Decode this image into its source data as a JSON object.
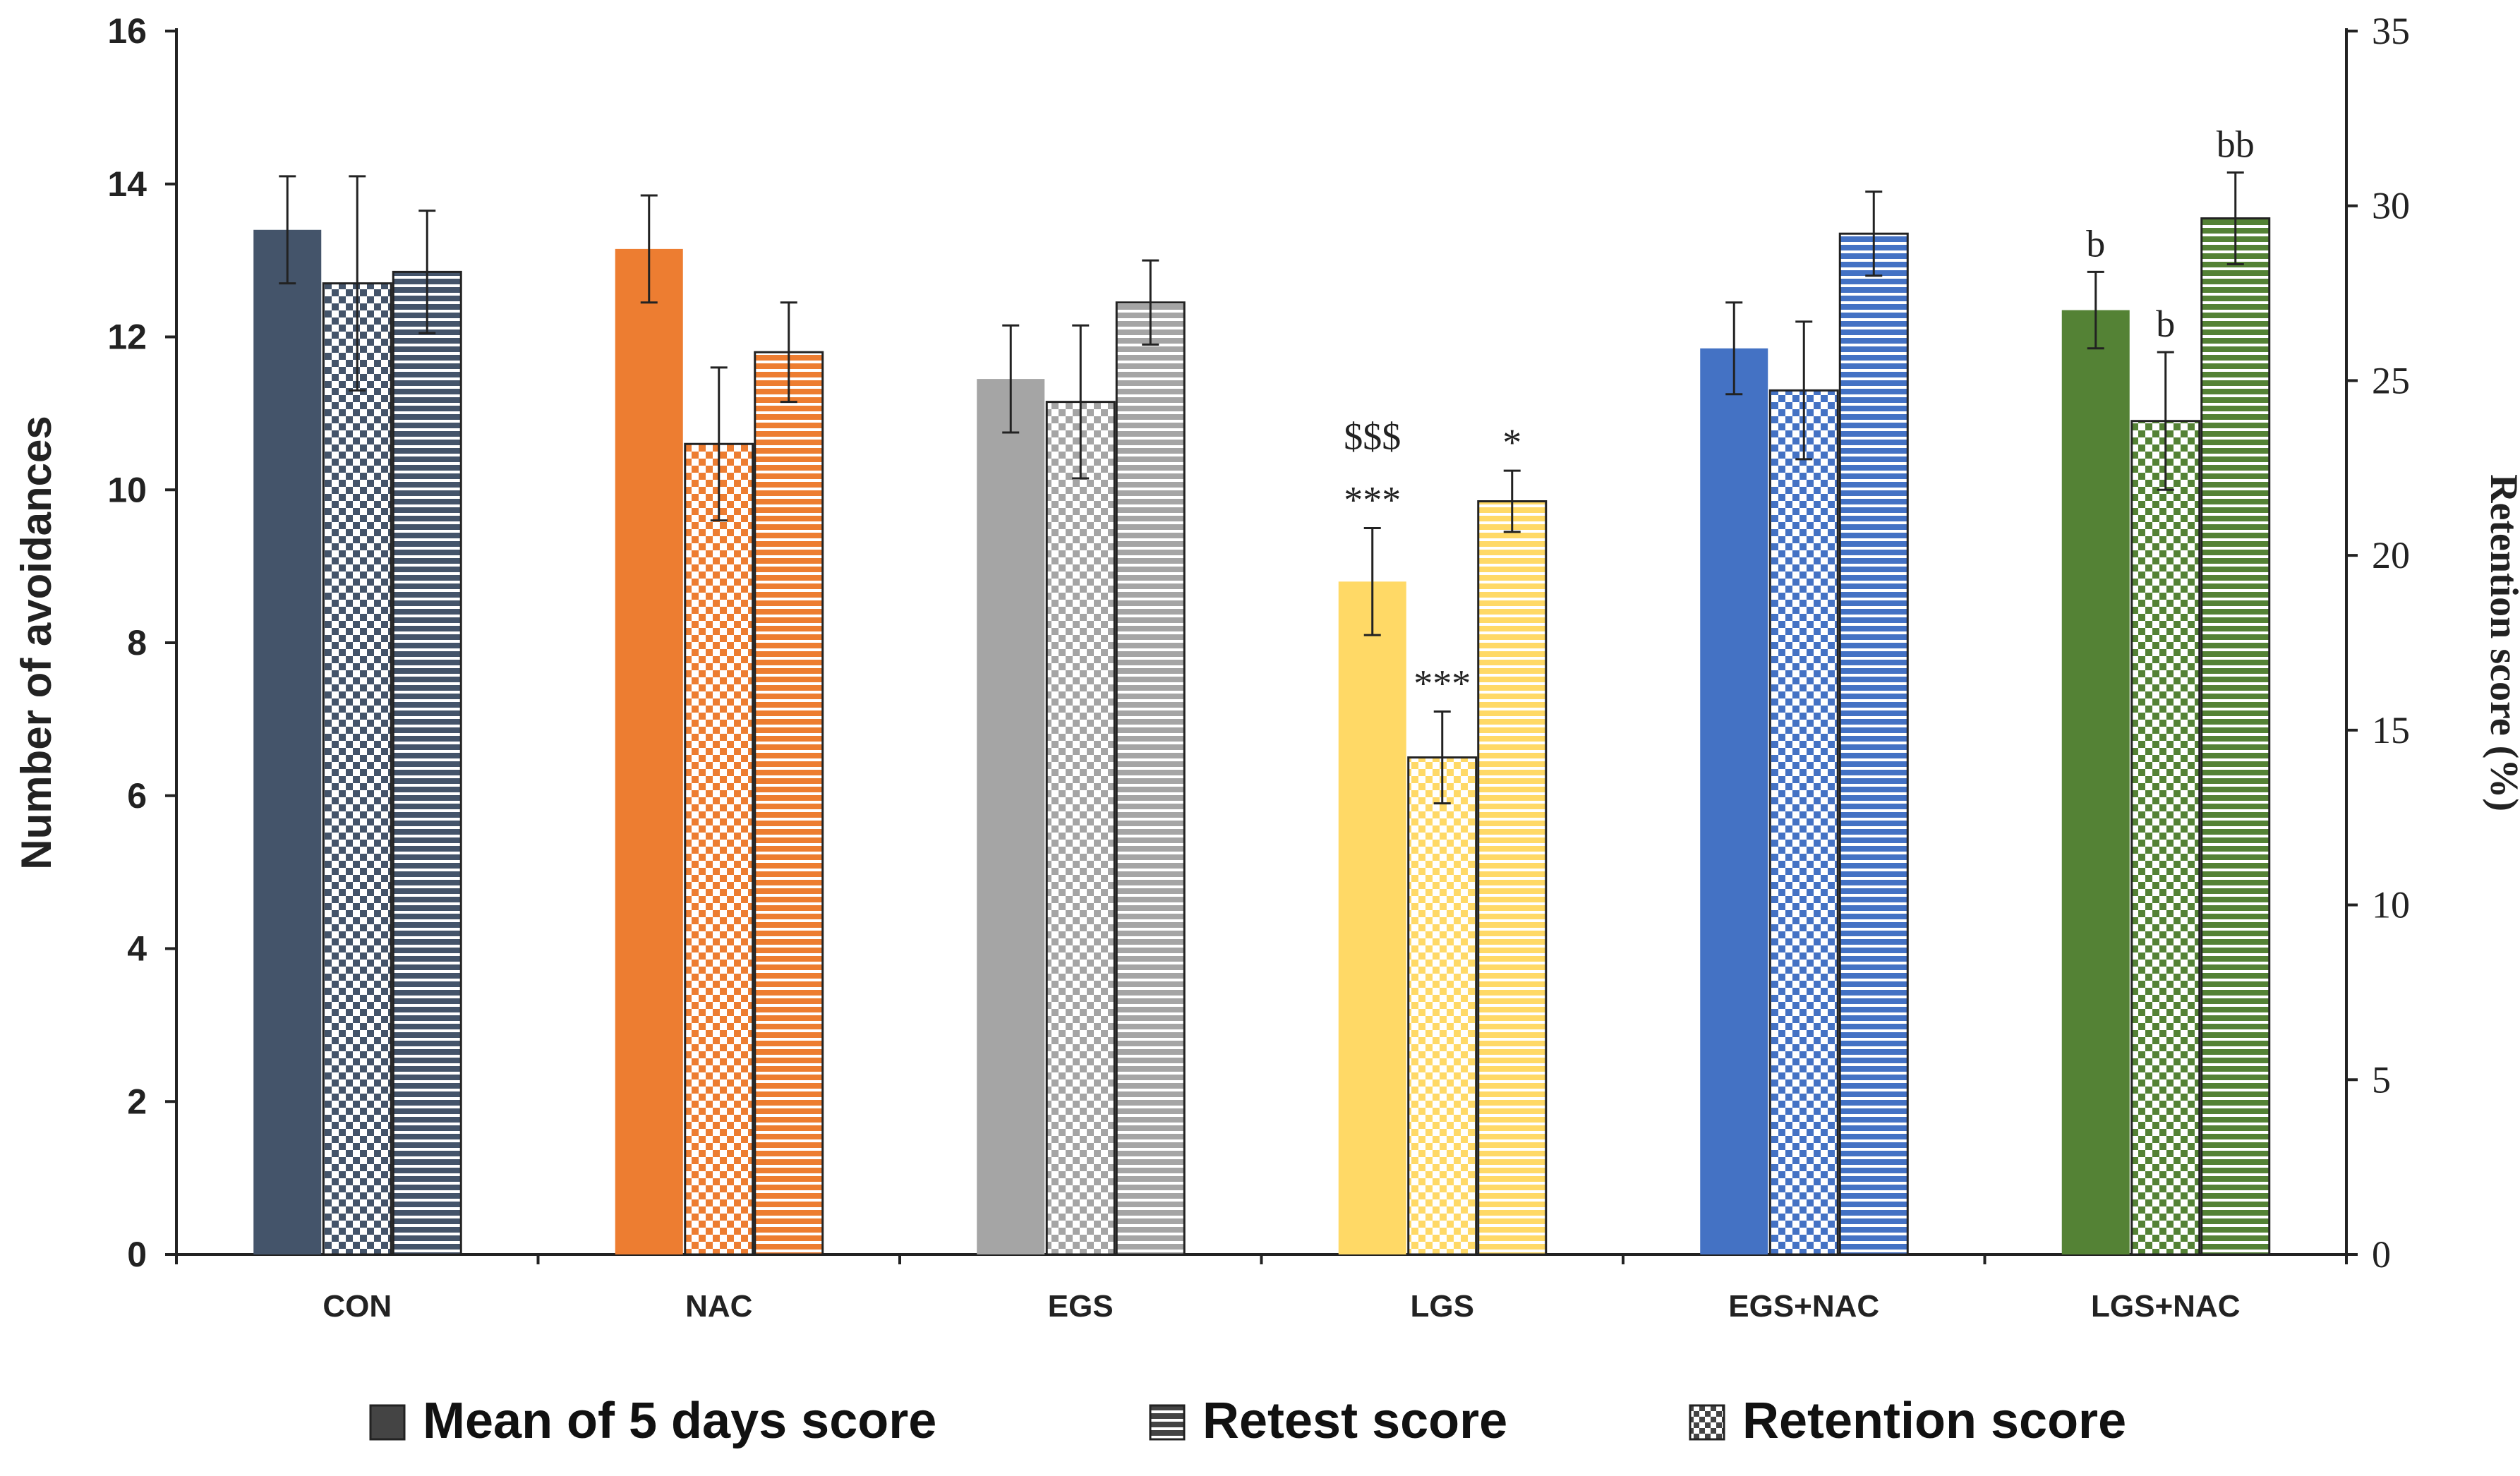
{
  "chart_data": {
    "type": "bar",
    "categories": [
      "CON",
      "NAC",
      "EGS",
      "LGS",
      "EGS+NAC",
      "LGS+NAC"
    ],
    "group_colors": [
      "#44546A",
      "#ED7D31",
      "#A5A5A5",
      "#FFD966",
      "#4472C4",
      "#548235"
    ],
    "series": [
      {
        "name": "Mean of 5 days score",
        "pattern": "solid",
        "axis": "left",
        "values": [
          13.4,
          13.15,
          11.45,
          8.8,
          11.85,
          12.35
        ],
        "errors": [
          0.7,
          0.7,
          0.7,
          0.7,
          0.6,
          0.5
        ]
      },
      {
        "name": "Retention score",
        "pattern": "checker",
        "axis": "left",
        "values": [
          12.7,
          10.6,
          11.15,
          6.5,
          11.3,
          10.9
        ],
        "errors": [
          1.4,
          1.0,
          1.0,
          0.6,
          0.9,
          0.9
        ]
      },
      {
        "name": "Retest score",
        "pattern": "stripes",
        "axis": "left",
        "values": [
          12.85,
          11.8,
          12.45,
          9.85,
          13.35,
          13.55
        ],
        "errors": [
          0.8,
          0.65,
          0.55,
          0.4,
          0.55,
          0.6
        ]
      }
    ],
    "ylabel": "Number of avoidances",
    "ylim": [
      0,
      16
    ],
    "yticks": [
      0,
      2,
      4,
      6,
      8,
      10,
      12,
      14,
      16
    ],
    "ylabel_right": "Retention score (%)",
    "ylim_right": [
      0,
      35
    ],
    "yticks_right": [
      0,
      5,
      10,
      15,
      20,
      25,
      30,
      35
    ],
    "legend": [
      "Mean of 5 days score",
      "Retest score",
      "Retention score"
    ],
    "legend_position": "bottom",
    "annotations": [
      {
        "category": 3,
        "series": 0,
        "text": "$$$",
        "level": 2
      },
      {
        "category": 3,
        "series": 0,
        "text": "***",
        "level": 1
      },
      {
        "category": 3,
        "series": 1,
        "text": "***",
        "level": 1
      },
      {
        "category": 3,
        "series": 2,
        "text": "*",
        "level": 1
      },
      {
        "category": 5,
        "series": 0,
        "text": "b",
        "level": 1
      },
      {
        "category": 5,
        "series": 1,
        "text": "b",
        "level": 1
      },
      {
        "category": 5,
        "series": 2,
        "text": "bb",
        "level": 1
      }
    ]
  }
}
